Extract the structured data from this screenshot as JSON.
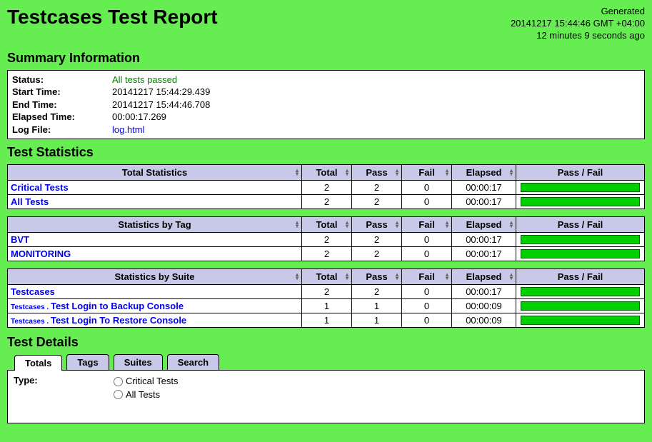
{
  "header": {
    "title": "Testcases Test Report",
    "generated_label": "Generated",
    "generated_time": "20141217 15:44:46 GMT +04:00",
    "generated_ago": "12 minutes 9 seconds ago"
  },
  "summary": {
    "heading": "Summary Information",
    "rows": {
      "status_label": "Status:",
      "status_value": "All tests passed",
      "start_label": "Start Time:",
      "start_value": "20141217 15:44:29.439",
      "end_label": "End Time:",
      "end_value": "20141217 15:44:46.708",
      "elapsed_label": "Elapsed Time:",
      "elapsed_value": "00:00:17.269",
      "log_label": "Log File:",
      "log_value": "log.html"
    }
  },
  "statistics": {
    "heading": "Test Statistics",
    "columns": {
      "total": "Total",
      "pass": "Pass",
      "fail": "Fail",
      "elapsed": "Elapsed",
      "passfail": "Pass / Fail"
    },
    "groups": [
      {
        "title": "Total Statistics",
        "rows": [
          {
            "name": "Critical Tests",
            "total": 2,
            "pass": 2,
            "fail": 0,
            "elapsed": "00:00:17"
          },
          {
            "name": "All Tests",
            "total": 2,
            "pass": 2,
            "fail": 0,
            "elapsed": "00:00:17"
          }
        ]
      },
      {
        "title": "Statistics by Tag",
        "rows": [
          {
            "name": "BVT",
            "total": 2,
            "pass": 2,
            "fail": 0,
            "elapsed": "00:00:17"
          },
          {
            "name": "MONITORING",
            "total": 2,
            "pass": 2,
            "fail": 0,
            "elapsed": "00:00:17"
          }
        ]
      },
      {
        "title": "Statistics by Suite",
        "rows": [
          {
            "name": "Testcases",
            "prefix": "",
            "total": 2,
            "pass": 2,
            "fail": 0,
            "elapsed": "00:00:17"
          },
          {
            "name": "Test Login to Backup Console",
            "prefix": "Testcases .",
            "total": 1,
            "pass": 1,
            "fail": 0,
            "elapsed": "00:00:09"
          },
          {
            "name": "Test Login To Restore Console",
            "prefix": "Testcases .",
            "total": 1,
            "pass": 1,
            "fail": 0,
            "elapsed": "00:00:09"
          }
        ]
      }
    ]
  },
  "details": {
    "heading": "Test Details",
    "tabs": [
      "Totals",
      "Tags",
      "Suites",
      "Search"
    ],
    "active_tab": 0,
    "type_label": "Type:",
    "type_options": [
      "Critical Tests",
      "All Tests"
    ]
  },
  "colors": {
    "page_bg": "#66ed52",
    "header_bg": "#c8c8e8",
    "pass_bar": "#00d000",
    "status_pass": "#008000",
    "link": "#0000ee"
  }
}
